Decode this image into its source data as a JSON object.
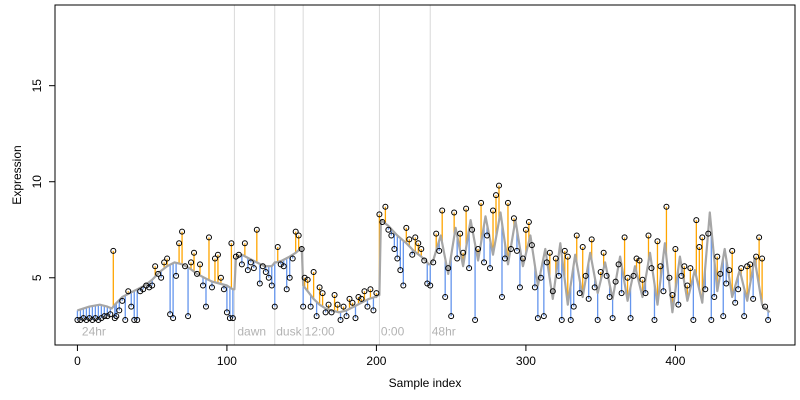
{
  "chart_data": {
    "type": "scatter",
    "xlabel": "Sample index",
    "ylabel": "Expression",
    "xlim": [
      -15,
      480
    ],
    "ylim": [
      1.5,
      19.2
    ],
    "x_ticks": [
      0,
      100,
      200,
      300,
      400
    ],
    "x_tick_labels": [
      "0",
      "100",
      "200",
      "300",
      "400"
    ],
    "y_ticks": [
      5,
      10,
      15
    ],
    "y_tick_labels": [
      "5",
      "10",
      "15"
    ],
    "grid": false,
    "legend": "none",
    "annotations": [
      {
        "text": "24hr",
        "x": 3,
        "y": 2.0
      },
      {
        "text": "dawn",
        "x": 107,
        "y": 2.0
      },
      {
        "text": "dusk",
        "x": 133,
        "y": 2.0
      },
      {
        "text": "12:00",
        "x": 152,
        "y": 2.0
      },
      {
        "text": "0:00",
        "x": 203,
        "y": 2.0
      },
      {
        "text": "48hr",
        "x": 237,
        "y": 2.0
      }
    ],
    "vertical_lines_x": [
      105,
      132,
      151,
      202,
      236
    ],
    "series": [
      {
        "role": "observed",
        "marker": "open-circle",
        "color": "#000000"
      },
      {
        "role": "fitted",
        "style": "line",
        "color": "#a6a6a6"
      },
      {
        "role": "residual-above-fit",
        "style": "segments",
        "color": "#ffa500"
      },
      {
        "role": "residual-below-fit",
        "style": "segments",
        "color": "#6495ed"
      }
    ],
    "fitted_x": [
      0,
      8,
      15,
      20,
      23,
      25,
      30,
      35,
      40,
      45,
      50,
      55,
      60,
      65,
      70,
      75,
      80,
      85,
      90,
      95,
      100,
      102,
      104,
      105,
      106,
      110,
      115,
      120,
      125,
      130,
      131,
      132,
      133,
      137,
      142,
      146,
      149,
      150,
      151,
      152,
      155,
      158,
      162,
      166,
      170,
      175,
      180,
      185,
      190,
      195,
      199,
      200,
      201,
      202,
      203,
      208,
      214,
      220,
      225,
      230,
      234,
      235,
      236,
      238,
      243,
      248,
      253,
      258,
      263,
      268,
      273,
      278,
      283,
      288,
      293,
      298,
      303,
      308,
      313,
      318,
      323,
      328,
      333,
      338,
      343,
      348,
      353,
      358,
      363,
      368,
      373,
      378,
      383,
      388,
      393,
      398,
      403,
      408,
      413,
      418,
      423,
      428,
      433,
      438,
      443,
      448,
      453,
      458,
      463
    ],
    "fitted_y": [
      3.3,
      3.5,
      3.6,
      3.5,
      3.4,
      3.6,
      4.0,
      4.2,
      4.4,
      4.6,
      4.9,
      5.3,
      5.6,
      5.8,
      5.7,
      5.5,
      5.2,
      5.0,
      4.8,
      4.7,
      4.6,
      4.5,
      4.4,
      4.4,
      6.0,
      6.2,
      6.0,
      5.8,
      5.6,
      5.6,
      5.7,
      5.8,
      5.8,
      5.9,
      6.1,
      6.3,
      6.5,
      6.6,
      4.6,
      4.5,
      4.2,
      3.9,
      3.6,
      3.4,
      3.3,
      3.2,
      3.3,
      3.5,
      3.7,
      3.9,
      4.0,
      4.0,
      4.1,
      4.1,
      8.0,
      7.7,
      7.2,
      6.8,
      6.4,
      6.1,
      5.8,
      5.7,
      5.7,
      5.9,
      7.2,
      5.2,
      7.6,
      5.6,
      8.0,
      5.9,
      8.2,
      6.2,
      8.4,
      5.7,
      8.0,
      5.6,
      7.2,
      4.6,
      6.5,
      3.9,
      6.8,
      3.6,
      6.2,
      4.0,
      6.3,
      4.2,
      5.8,
      3.9,
      6.1,
      3.8,
      5.6,
      4.0,
      6.3,
      3.6,
      6.8,
      3.2,
      6.1,
      3.8,
      5.4,
      3.7,
      8.4,
      4.3,
      6.5,
      4.0,
      5.4,
      3.8,
      6.0,
      3.6,
      3.2
    ],
    "points": [
      [
        0,
        2.8
      ],
      [
        2,
        2.8
      ],
      [
        4,
        2.9
      ],
      [
        6,
        2.8
      ],
      [
        8,
        2.9
      ],
      [
        10,
        2.8
      ],
      [
        12,
        2.9
      ],
      [
        14,
        2.8
      ],
      [
        16,
        2.9
      ],
      [
        18,
        3.0
      ],
      [
        20,
        3.0
      ],
      [
        22,
        3.1
      ],
      [
        24,
        6.4
      ],
      [
        25,
        2.9
      ],
      [
        26,
        3.0
      ],
      [
        28,
        3.3
      ],
      [
        30,
        3.8
      ],
      [
        32,
        2.8
      ],
      [
        34,
        4.3
      ],
      [
        36,
        3.5
      ],
      [
        38,
        2.8
      ],
      [
        40,
        2.8
      ],
      [
        42,
        4.3
      ],
      [
        44,
        4.4
      ],
      [
        46,
        4.6
      ],
      [
        48,
        4.5
      ],
      [
        50,
        4.6
      ],
      [
        52,
        5.6
      ],
      [
        54,
        5.2
      ],
      [
        56,
        5.0
      ],
      [
        58,
        5.8
      ],
      [
        60,
        6.0
      ],
      [
        62,
        3.1
      ],
      [
        64,
        2.9
      ],
      [
        66,
        5.1
      ],
      [
        68,
        6.8
      ],
      [
        70,
        7.4
      ],
      [
        72,
        5.6
      ],
      [
        74,
        3.0
      ],
      [
        76,
        5.8
      ],
      [
        78,
        6.3
      ],
      [
        80,
        5.2
      ],
      [
        82,
        5.7
      ],
      [
        84,
        4.6
      ],
      [
        86,
        3.5
      ],
      [
        88,
        7.1
      ],
      [
        90,
        4.5
      ],
      [
        92,
        6.0
      ],
      [
        94,
        6.2
      ],
      [
        96,
        5.0
      ],
      [
        98,
        4.4
      ],
      [
        100,
        3.2
      ],
      [
        102,
        2.9
      ],
      [
        103,
        6.8
      ],
      [
        104,
        2.9
      ],
      [
        106,
        6.1
      ],
      [
        108,
        6.2
      ],
      [
        110,
        5.7
      ],
      [
        112,
        6.8
      ],
      [
        114,
        5.4
      ],
      [
        116,
        5.8
      ],
      [
        118,
        5.5
      ],
      [
        120,
        7.5
      ],
      [
        122,
        4.7
      ],
      [
        124,
        5.6
      ],
      [
        126,
        5.3
      ],
      [
        128,
        5.0
      ],
      [
        130,
        4.6
      ],
      [
        132,
        3.5
      ],
      [
        134,
        6.6
      ],
      [
        136,
        5.7
      ],
      [
        138,
        5.6
      ],
      [
        140,
        4.4
      ],
      [
        142,
        5.0
      ],
      [
        144,
        6.0
      ],
      [
        146,
        7.4
      ],
      [
        148,
        7.2
      ],
      [
        150,
        6.5
      ],
      [
        151,
        3.5
      ],
      [
        152,
        5.0
      ],
      [
        154,
        4.9
      ],
      [
        156,
        3.5
      ],
      [
        158,
        5.3
      ],
      [
        160,
        3.0
      ],
      [
        162,
        4.5
      ],
      [
        164,
        4.2
      ],
      [
        166,
        3.2
      ],
      [
        168,
        3.6
      ],
      [
        170,
        3.2
      ],
      [
        172,
        4.1
      ],
      [
        174,
        3.6
      ],
      [
        176,
        2.8
      ],
      [
        178,
        3.5
      ],
      [
        180,
        3.0
      ],
      [
        182,
        3.9
      ],
      [
        184,
        3.7
      ],
      [
        186,
        2.9
      ],
      [
        188,
        4.0
      ],
      [
        190,
        3.9
      ],
      [
        192,
        4.3
      ],
      [
        194,
        3.5
      ],
      [
        196,
        4.4
      ],
      [
        198,
        3.3
      ],
      [
        200,
        4.2
      ],
      [
        202,
        8.3
      ],
      [
        204,
        7.9
      ],
      [
        206,
        8.7
      ],
      [
        208,
        7.5
      ],
      [
        210,
        7.2
      ],
      [
        212,
        6.5
      ],
      [
        214,
        6.0
      ],
      [
        216,
        5.4
      ],
      [
        218,
        4.6
      ],
      [
        220,
        7.6
      ],
      [
        222,
        7.0
      ],
      [
        224,
        6.2
      ],
      [
        226,
        7.1
      ],
      [
        228,
        6.8
      ],
      [
        230,
        6.5
      ],
      [
        232,
        5.9
      ],
      [
        234,
        4.7
      ],
      [
        236,
        4.6
      ],
      [
        238,
        5.8
      ],
      [
        240,
        7.3
      ],
      [
        242,
        6.4
      ],
      [
        244,
        8.5
      ],
      [
        246,
        4.0
      ],
      [
        248,
        5.5
      ],
      [
        250,
        3.0
      ],
      [
        252,
        8.4
      ],
      [
        254,
        6.0
      ],
      [
        256,
        7.3
      ],
      [
        258,
        6.3
      ],
      [
        260,
        8.6
      ],
      [
        262,
        5.5
      ],
      [
        264,
        7.5
      ],
      [
        266,
        2.8
      ],
      [
        268,
        6.5
      ],
      [
        270,
        8.9
      ],
      [
        272,
        5.8
      ],
      [
        274,
        7.2
      ],
      [
        276,
        5.5
      ],
      [
        278,
        8.5
      ],
      [
        280,
        9.3
      ],
      [
        282,
        9.8
      ],
      [
        284,
        4.0
      ],
      [
        286,
        6.0
      ],
      [
        288,
        8.9
      ],
      [
        290,
        6.5
      ],
      [
        292,
        8.1
      ],
      [
        294,
        6.4
      ],
      [
        296,
        4.5
      ],
      [
        298,
        6.0
      ],
      [
        300,
        7.5
      ],
      [
        302,
        7.9
      ],
      [
        304,
        6.7
      ],
      [
        306,
        4.5
      ],
      [
        308,
        2.9
      ],
      [
        310,
        5.0
      ],
      [
        312,
        3.0
      ],
      [
        314,
        5.8
      ],
      [
        316,
        6.3
      ],
      [
        318,
        4.3
      ],
      [
        320,
        6.0
      ],
      [
        322,
        5.1
      ],
      [
        324,
        2.8
      ],
      [
        326,
        6.4
      ],
      [
        328,
        6.1
      ],
      [
        330,
        2.8
      ],
      [
        332,
        3.5
      ],
      [
        334,
        7.2
      ],
      [
        336,
        4.2
      ],
      [
        338,
        6.6
      ],
      [
        340,
        5.1
      ],
      [
        342,
        3.9
      ],
      [
        344,
        7.0
      ],
      [
        346,
        4.5
      ],
      [
        348,
        2.8
      ],
      [
        350,
        5.3
      ],
      [
        352,
        6.3
      ],
      [
        354,
        5.1
      ],
      [
        356,
        4.0
      ],
      [
        358,
        2.9
      ],
      [
        360,
        4.8
      ],
      [
        362,
        5.7
      ],
      [
        364,
        4.2
      ],
      [
        366,
        7.1
      ],
      [
        368,
        5.0
      ],
      [
        370,
        2.9
      ],
      [
        372,
        5.1
      ],
      [
        374,
        6.0
      ],
      [
        376,
        5.9
      ],
      [
        378,
        4.9
      ],
      [
        380,
        4.2
      ],
      [
        382,
        7.2
      ],
      [
        384,
        5.5
      ],
      [
        386,
        2.8
      ],
      [
        388,
        6.9
      ],
      [
        390,
        5.6
      ],
      [
        392,
        4.3
      ],
      [
        394,
        8.7
      ],
      [
        396,
        5.0
      ],
      [
        398,
        4.1
      ],
      [
        400,
        6.5
      ],
      [
        402,
        3.6
      ],
      [
        404,
        5.1
      ],
      [
        406,
        5.6
      ],
      [
        408,
        4.6
      ],
      [
        410,
        5.5
      ],
      [
        412,
        2.8
      ],
      [
        414,
        8.0
      ],
      [
        416,
        6.6
      ],
      [
        418,
        7.1
      ],
      [
        420,
        4.4
      ],
      [
        422,
        7.3
      ],
      [
        424,
        2.8
      ],
      [
        426,
        4.0
      ],
      [
        428,
        6.1
      ],
      [
        430,
        5.2
      ],
      [
        432,
        3.0
      ],
      [
        434,
        4.7
      ],
      [
        436,
        5.4
      ],
      [
        438,
        6.4
      ],
      [
        440,
        3.7
      ],
      [
        442,
        4.4
      ],
      [
        444,
        5.5
      ],
      [
        446,
        3.0
      ],
      [
        448,
        5.6
      ],
      [
        450,
        5.7
      ],
      [
        452,
        3.9
      ],
      [
        454,
        6.1
      ],
      [
        456,
        7.1
      ],
      [
        458,
        6.0
      ],
      [
        460,
        3.5
      ],
      [
        462,
        2.8
      ]
    ]
  }
}
